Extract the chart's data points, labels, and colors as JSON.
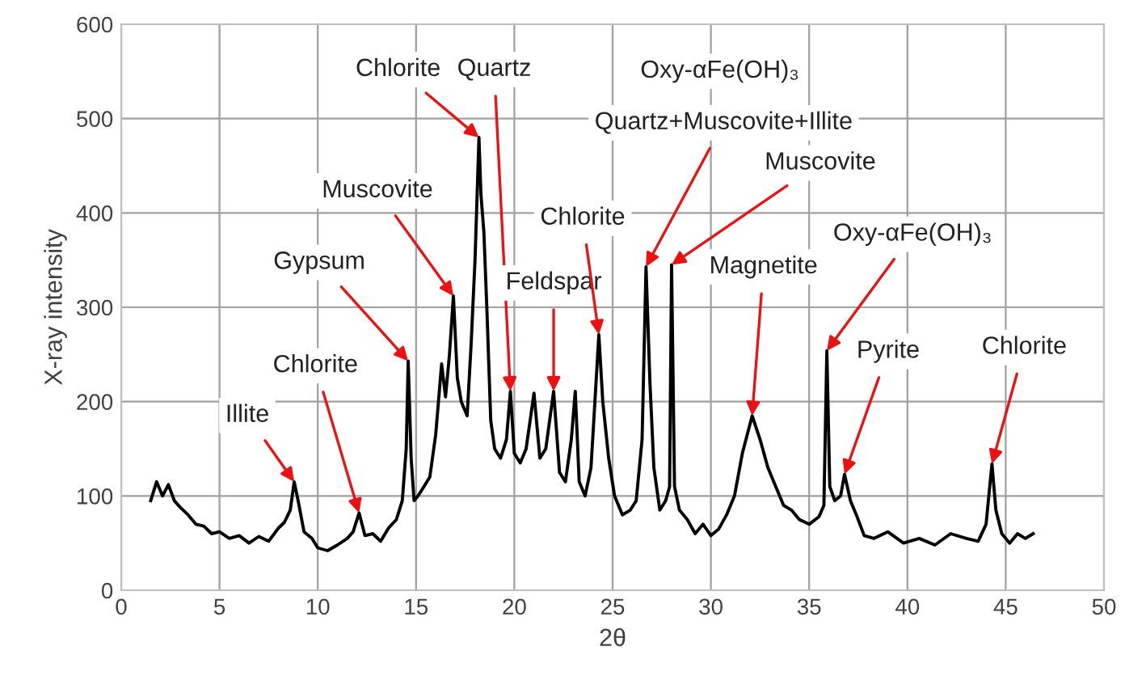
{
  "chart_data": {
    "type": "line",
    "xlabel": "2θ",
    "ylabel": "X-ray intensity",
    "xlim": [
      0,
      50
    ],
    "xticks": [
      0,
      5,
      10,
      15,
      20,
      25,
      30,
      35,
      40,
      45,
      50
    ],
    "ylim": [
      0,
      600
    ],
    "yticks": [
      0,
      100,
      200,
      300,
      400,
      500,
      600
    ],
    "grid": true,
    "legend": false,
    "series": [
      {
        "color": "#000000",
        "x": [
          1.5,
          1.8,
          2.1,
          2.4,
          2.7,
          3.0,
          3.4,
          3.8,
          4.2,
          4.6,
          5.0,
          5.5,
          6.0,
          6.5,
          7.0,
          7.5,
          8.0,
          8.3,
          8.6,
          8.8,
          9.0,
          9.3,
          9.7,
          10.0,
          10.5,
          11.0,
          11.5,
          11.8,
          12.1,
          12.4,
          12.8,
          13.2,
          13.6,
          14.0,
          14.3,
          14.5,
          14.6,
          14.75,
          14.9,
          15.1,
          15.4,
          15.7,
          16.0,
          16.3,
          16.5,
          16.7,
          16.9,
          17.1,
          17.3,
          17.6,
          17.8,
          18.0,
          18.2,
          18.3,
          18.45,
          18.6,
          18.8,
          19.0,
          19.3,
          19.6,
          19.8,
          20.0,
          20.3,
          20.6,
          21.0,
          21.3,
          21.6,
          22.0,
          22.3,
          22.6,
          22.9,
          23.1,
          23.3,
          23.6,
          23.9,
          24.1,
          24.3,
          24.5,
          24.8,
          25.1,
          25.5,
          25.9,
          26.2,
          26.5,
          26.7,
          26.9,
          27.1,
          27.4,
          27.7,
          27.9,
          28.0,
          28.15,
          28.4,
          28.8,
          29.2,
          29.6,
          30.0,
          30.4,
          30.8,
          31.2,
          31.6,
          32.1,
          32.5,
          32.9,
          33.3,
          33.7,
          34.1,
          34.5,
          35.0,
          35.5,
          35.75,
          35.9,
          36.05,
          36.3,
          36.6,
          36.8,
          37.1,
          37.4,
          37.8,
          38.3,
          39.0,
          39.8,
          40.6,
          41.4,
          42.2,
          43.0,
          43.6,
          44.0,
          44.3,
          44.5,
          44.8,
          45.2,
          45.6,
          46.0,
          46.4
        ],
        "values": [
          95,
          115,
          100,
          112,
          95,
          88,
          80,
          70,
          68,
          60,
          62,
          55,
          58,
          50,
          57,
          52,
          66,
          72,
          85,
          115,
          95,
          62,
          55,
          45,
          42,
          48,
          55,
          62,
          82,
          58,
          60,
          52,
          66,
          75,
          95,
          150,
          243,
          140,
          95,
          100,
          110,
          120,
          165,
          240,
          205,
          250,
          312,
          225,
          200,
          185,
          260,
          350,
          480,
          420,
          380,
          300,
          180,
          150,
          140,
          160,
          211,
          145,
          135,
          150,
          209,
          140,
          150,
          211,
          125,
          115,
          160,
          211,
          115,
          100,
          130,
          200,
          271,
          200,
          140,
          100,
          80,
          85,
          95,
          160,
          343,
          220,
          130,
          85,
          95,
          110,
          345,
          110,
          85,
          75,
          60,
          70,
          58,
          65,
          80,
          100,
          145,
          185,
          160,
          130,
          110,
          90,
          85,
          75,
          70,
          78,
          90,
          254,
          110,
          95,
          100,
          123,
          95,
          80,
          58,
          55,
          62,
          50,
          55,
          48,
          60,
          55,
          52,
          70,
          134,
          85,
          60,
          50,
          60,
          55,
          60
        ]
      }
    ],
    "annotations": [
      {
        "text": "Illite",
        "x": 8.8,
        "y": 115
      },
      {
        "text": "Chlorite",
        "x": 12.1,
        "y": 82
      },
      {
        "text": "Gypsum",
        "x": 14.6,
        "y": 243
      },
      {
        "text": "Muscovite",
        "x": 16.9,
        "y": 312
      },
      {
        "text": "Chlorite",
        "x": 18.2,
        "y": 480
      },
      {
        "text": "Quartz",
        "x": 19.8,
        "y": 211
      },
      "Oxy-αFe(OH)₃",
      {
        "text": "Quartz+Muscovite+Illite",
        "x": 26.7,
        "y": 343
      },
      {
        "text": "Feldspar",
        "x": 22.0,
        "y": 211
      },
      {
        "text": "Chlorite",
        "x": 24.3,
        "y": 271
      },
      {
        "text": "Muscovite",
        "x": 28.0,
        "y": 345
      },
      {
        "text": "Magnetite",
        "x": 32.1,
        "y": 185
      },
      {
        "text": "Oxy-αFe(OH)₃",
        "x": 35.9,
        "y": 254
      },
      {
        "text": "Pyrite",
        "x": 36.8,
        "y": 123
      },
      {
        "text": "Chlorite",
        "x": 44.3,
        "y": 134
      }
    ]
  }
}
